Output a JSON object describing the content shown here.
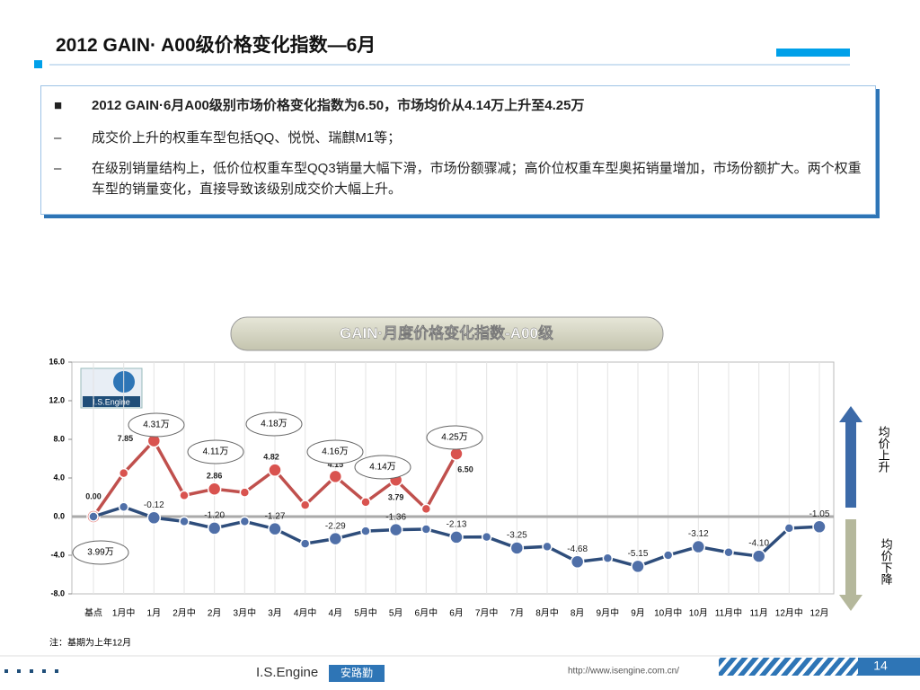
{
  "header": {
    "title": "2012 GAIN· A00级价格变化指数—6月"
  },
  "bullets": [
    {
      "mark": "■",
      "text": "2012 GAIN·6月A00级别市场价格变化指数为6.50，市场均价从4.14万上升至4.25万"
    },
    {
      "mark": "–",
      "text": "成交价上升的权重车型包括QQ、悦悦、瑞麒M1等；"
    },
    {
      "mark": "–",
      "text": "在级别销量结构上，低价位权重车型QQ3销量大幅下滑，市场份额骤减；高价位权重车型奥拓销量增加，市场份额扩大。两个权重车型的销量变化，直接导致该级别成交价大幅上升。"
    }
  ],
  "chart_data": {
    "type": "line",
    "title": "GAIN·月度价格变化指数-A00级",
    "logo": "I.S.Engine",
    "categories": [
      "基点",
      "1月中",
      "1月",
      "2月中",
      "2月",
      "3月中",
      "3月",
      "4月中",
      "4月",
      "5月中",
      "5月",
      "6月中",
      "6月",
      "7月中",
      "7月",
      "8月中",
      "8月",
      "9月中",
      "9月",
      "10月中",
      "10月",
      "11月中",
      "11月",
      "12月中",
      "12月"
    ],
    "series": [
      {
        "color": "#c0504d",
        "values": [
          0.0,
          4.5,
          7.85,
          2.2,
          2.86,
          2.5,
          4.82,
          1.2,
          4.15,
          1.5,
          3.79,
          0.8,
          6.5,
          null,
          null,
          null,
          null,
          null,
          null,
          null,
          null,
          null,
          null,
          null,
          null
        ],
        "value_labels": [
          "0.00",
          null,
          "7.85",
          null,
          "2.86",
          null,
          "4.82",
          null,
          "4.15",
          null,
          "3.79",
          null,
          "6.50",
          null,
          null,
          null,
          null,
          null,
          null,
          null,
          null,
          null,
          null,
          null,
          null
        ]
      },
      {
        "color": "#2e4d7b",
        "values": [
          0.0,
          1.0,
          -0.12,
          -0.5,
          -1.2,
          -0.5,
          -1.27,
          -2.8,
          -2.29,
          -1.5,
          -1.36,
          -1.3,
          -2.13,
          -2.1,
          -3.25,
          -3.1,
          -4.68,
          -4.3,
          -5.15,
          -4.0,
          -3.12,
          -3.7,
          -4.1,
          -1.2,
          -1.05
        ],
        "value_labels": [
          null,
          null,
          "-0.12",
          null,
          "-1.20",
          null,
          "-1.27",
          null,
          "-2.29",
          null,
          "-1.36",
          null,
          "-2.13",
          null,
          "-3.25",
          null,
          "-4.68",
          null,
          "-5.15",
          null,
          "-3.12",
          null,
          "-4.10",
          null,
          "-1.05"
        ]
      }
    ],
    "ylim": [
      -8,
      16
    ],
    "yticks": [
      {
        "value": 16,
        "label": "16.0"
      },
      {
        "value": 12,
        "label": "12.0"
      },
      {
        "value": 8,
        "label": "8.0"
      },
      {
        "value": 4,
        "label": "4.0"
      },
      {
        "value": 0,
        "label": "0.0"
      },
      {
        "value": -4,
        "label": "-4.0"
      },
      {
        "value": -8,
        "label": "-8.0"
      }
    ],
    "annotations": [
      "4.31万",
      "4.18万",
      "4.11万",
      "4.16万",
      "4.14万",
      "4.25万",
      "3.99万"
    ],
    "side_labels": [
      "均价上升",
      "均价下降"
    ],
    "note": "注：基期为上年12月"
  },
  "footer": {
    "brand": "I.S.Engine",
    "brand_cn": "安路勤",
    "url": "http://www.isengine.com.cn/",
    "page": "14"
  }
}
